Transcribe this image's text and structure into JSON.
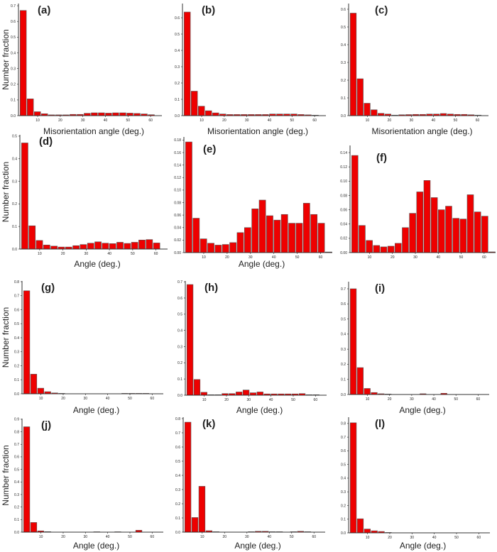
{
  "chart_data": [
    {
      "panel_label": "(a)",
      "type": "bar",
      "xlabel": "Misorientation angle (deg.)",
      "ylabel": "Number fraction",
      "xlim": [
        1.5,
        65
      ],
      "ylim": [
        0,
        0.714
      ],
      "xticks": [
        "10",
        "20",
        "30",
        "40",
        "50",
        "60"
      ],
      "yticks": [
        "0.0",
        "0.1",
        "0.2",
        "0.3",
        "0.4",
        "0.5",
        "0.6",
        "0.7"
      ],
      "values": [
        0.67,
        0.107,
        0.025,
        0.012,
        0.005,
        0.005,
        0.005,
        0.008,
        0.008,
        0.015,
        0.018,
        0.018,
        0.016,
        0.018,
        0.018,
        0.016,
        0.014,
        0.011,
        0.006
      ]
    },
    {
      "panel_label": "(b)",
      "type": "bar",
      "xlabel": "Misorientation angle (deg.)",
      "ylabel": "",
      "xlim": [
        1.5,
        65
      ],
      "ylim": [
        0,
        0.687
      ],
      "xticks": [
        "10",
        "20",
        "30",
        "40",
        "50",
        "60"
      ],
      "yticks": [
        "0.0",
        "0.1",
        "0.2",
        "0.3",
        "0.4",
        "0.5",
        "0.6"
      ],
      "values": [
        0.635,
        0.15,
        0.058,
        0.03,
        0.017,
        0.01,
        0.007,
        0.007,
        0.007,
        0.007,
        0.007,
        0.007,
        0.01,
        0.01,
        0.01,
        0.01,
        0.007,
        0.005,
        0.003
      ]
    },
    {
      "panel_label": "(c)",
      "type": "bar",
      "xlabel": "Misorientation angle (deg.)",
      "ylabel": "",
      "xlim": [
        1.5,
        65
      ],
      "ylim": [
        0,
        0.632
      ],
      "xticks": [
        "10",
        "20",
        "30",
        "40",
        "50",
        "60"
      ],
      "yticks": [
        "0.0",
        "0.1",
        "0.2",
        "0.3",
        "0.4",
        "0.5",
        "0.6"
      ],
      "values": [
        0.578,
        0.208,
        0.07,
        0.033,
        0.013,
        0.009,
        0.003,
        0.005,
        0.006,
        0.007,
        0.007,
        0.009,
        0.009,
        0.012,
        0.009,
        0.007,
        0.007,
        0.005,
        0.003
      ]
    },
    {
      "panel_label": "(d)",
      "type": "bar",
      "xlabel": "Angle (deg.)",
      "ylabel": "Number fraction",
      "xlim": [
        1.5,
        65
      ],
      "ylim": [
        0,
        0.506
      ],
      "xticks": [
        "10",
        "20",
        "30",
        "40",
        "50",
        "60"
      ],
      "yticks": [
        "0.0",
        "0.1",
        "0.2",
        "0.3",
        "0.4",
        "0.5"
      ],
      "values": [
        0.47,
        0.103,
        0.038,
        0.018,
        0.013,
        0.009,
        0.009,
        0.015,
        0.02,
        0.026,
        0.032,
        0.026,
        0.024,
        0.03,
        0.025,
        0.03,
        0.04,
        0.042,
        0.027
      ]
    },
    {
      "panel_label": "(e)",
      "type": "bar",
      "xlabel": "Angle (deg.)",
      "ylabel": "",
      "xlim": [
        1.5,
        65
      ],
      "ylim": [
        0,
        0.185
      ],
      "xticks": [
        "10",
        "20",
        "30",
        "40",
        "50",
        "60"
      ],
      "yticks": [
        "0.00",
        "0.02",
        "0.04",
        "0.06",
        "0.08",
        "0.10",
        "0.12",
        "0.14",
        "0.16",
        "0.18"
      ],
      "values": [
        0.177,
        0.055,
        0.022,
        0.015,
        0.012,
        0.013,
        0.016,
        0.032,
        0.04,
        0.07,
        0.084,
        0.059,
        0.052,
        0.061,
        0.047,
        0.047,
        0.079,
        0.061,
        0.047,
        0.001
      ]
    },
    {
      "panel_label": "(f)",
      "type": "bar",
      "xlabel": "",
      "ylabel": "",
      "xlim": [
        1.5,
        65
      ],
      "ylim": [
        0,
        0.15
      ],
      "xticks": [
        "10",
        "20",
        "30",
        "40",
        "50",
        "60"
      ],
      "yticks": [
        "0.00",
        "0.02",
        "0.04",
        "0.06",
        "0.08",
        "0.10",
        "0.12",
        "0.14"
      ],
      "values": [
        0.136,
        0.038,
        0.017,
        0.01,
        0.008,
        0.009,
        0.013,
        0.035,
        0.055,
        0.085,
        0.101,
        0.077,
        0.06,
        0.065,
        0.048,
        0.047,
        0.081,
        0.057,
        0.051,
        0.001
      ]
    },
    {
      "panel_label": "(g)",
      "type": "bar",
      "xlabel": "Angle (deg.)",
      "ylabel": "Number fraction",
      "xlim": [
        1.5,
        65
      ],
      "ylim": [
        0,
        0.805
      ],
      "xticks": [
        "10",
        "20",
        "30",
        "40",
        "50",
        "60"
      ],
      "yticks": [
        "0.0",
        "0.1",
        "0.2",
        "0.3",
        "0.4",
        "0.5",
        "0.6",
        "0.7",
        "0.8"
      ],
      "values": [
        0.735,
        0.14,
        0.04,
        0.015,
        0.006,
        0.003,
        0,
        0,
        0,
        0,
        0,
        0,
        0,
        0,
        0.003,
        0.003,
        0.003,
        0.003,
        0
      ]
    },
    {
      "panel_label": "(h)",
      "type": "bar",
      "xlabel": "Angle (deg.)",
      "ylabel": "",
      "xlim": [
        1.5,
        65
      ],
      "ylim": [
        0,
        0.705
      ],
      "xticks": [
        "10",
        "20",
        "30",
        "40",
        "50",
        "60"
      ],
      "yticks": [
        "0.0",
        "0.1",
        "0.2",
        "0.3",
        "0.4",
        "0.5",
        "0.6",
        "0.7"
      ],
      "values": [
        0.683,
        0.097,
        0.018,
        0.003,
        0.003,
        0.01,
        0.01,
        0.02,
        0.032,
        0.015,
        0.02,
        0.008,
        0.008,
        0.008,
        0.008,
        0.008,
        0.01,
        0.003,
        0.003
      ]
    },
    {
      "panel_label": "(i)",
      "type": "bar",
      "xlabel": "Angle (deg.)",
      "ylabel": "",
      "xlim": [
        1.5,
        65
      ],
      "ylim": [
        0,
        0.747
      ],
      "xticks": [
        "10",
        "20",
        "30",
        "40",
        "50",
        "60"
      ],
      "yticks": [
        "0.0",
        "0.1",
        "0.2",
        "0.3",
        "0.4",
        "0.5",
        "0.6",
        "0.7"
      ],
      "values": [
        0.7,
        0.178,
        0.04,
        0.013,
        0.005,
        0.003,
        0,
        0,
        0,
        0,
        0.005,
        0,
        0,
        0.008,
        0,
        0,
        0,
        0,
        0
      ]
    },
    {
      "panel_label": "(j)",
      "type": "bar",
      "xlabel": "Angle (deg.)",
      "ylabel": "Number fraction",
      "xlim": [
        1.5,
        65
      ],
      "ylim": [
        0,
        0.905
      ],
      "xticks": [
        "10",
        "20",
        "30",
        "40",
        "50",
        "60"
      ],
      "yticks": [
        "0.0",
        "0.1",
        "0.2",
        "0.3",
        "0.4",
        "0.5",
        "0.6",
        "0.7",
        "0.8",
        "0.9"
      ],
      "values": [
        0.84,
        0.077,
        0.01,
        0.004,
        0,
        0,
        0,
        0,
        0,
        0,
        0.003,
        0,
        0,
        0.003,
        0,
        0,
        0.015,
        0,
        0
      ]
    },
    {
      "panel_label": "(k)",
      "type": "bar",
      "xlabel": "Angle (deg.)",
      "ylabel": "",
      "xlim": [
        1.5,
        65
      ],
      "ylim": [
        0,
        0.81
      ],
      "xticks": [
        "10",
        "20",
        "30",
        "40",
        "50",
        "60"
      ],
      "yticks": [
        "0.0",
        "0.1",
        "0.2",
        "0.3",
        "0.4",
        "0.5",
        "0.6",
        "0.7",
        "0.8"
      ],
      "values": [
        0.775,
        0.103,
        0.323,
        0.01,
        0.003,
        0,
        0,
        0,
        0,
        0.003,
        0.006,
        0.006,
        0.003,
        0.003,
        0,
        0.003,
        0.006,
        0.003,
        0
      ]
    },
    {
      "panel_label": "(l)",
      "type": "bar",
      "xlabel": "Angle (deg.)",
      "ylabel": "",
      "xlim": [
        1.5,
        65
      ],
      "ylim": [
        0,
        0.846
      ],
      "xticks": [
        "10",
        "20",
        "30",
        "40",
        "50",
        "60"
      ],
      "yticks": [
        "0.0",
        "0.1",
        "0.2",
        "0.3",
        "0.4",
        "0.5",
        "0.6",
        "0.7",
        "0.8"
      ],
      "values": [
        0.805,
        0.103,
        0.028,
        0.015,
        0.01,
        0.003,
        0,
        0,
        0,
        0,
        0,
        0,
        0,
        0,
        0,
        0,
        0,
        0,
        0
      ]
    }
  ],
  "bin_width_deg": 3.15,
  "first_bin_center_deg": 3.6,
  "colors": {
    "bar": "#ee0000",
    "bar_edge": "#555555",
    "axis": "#333333"
  }
}
